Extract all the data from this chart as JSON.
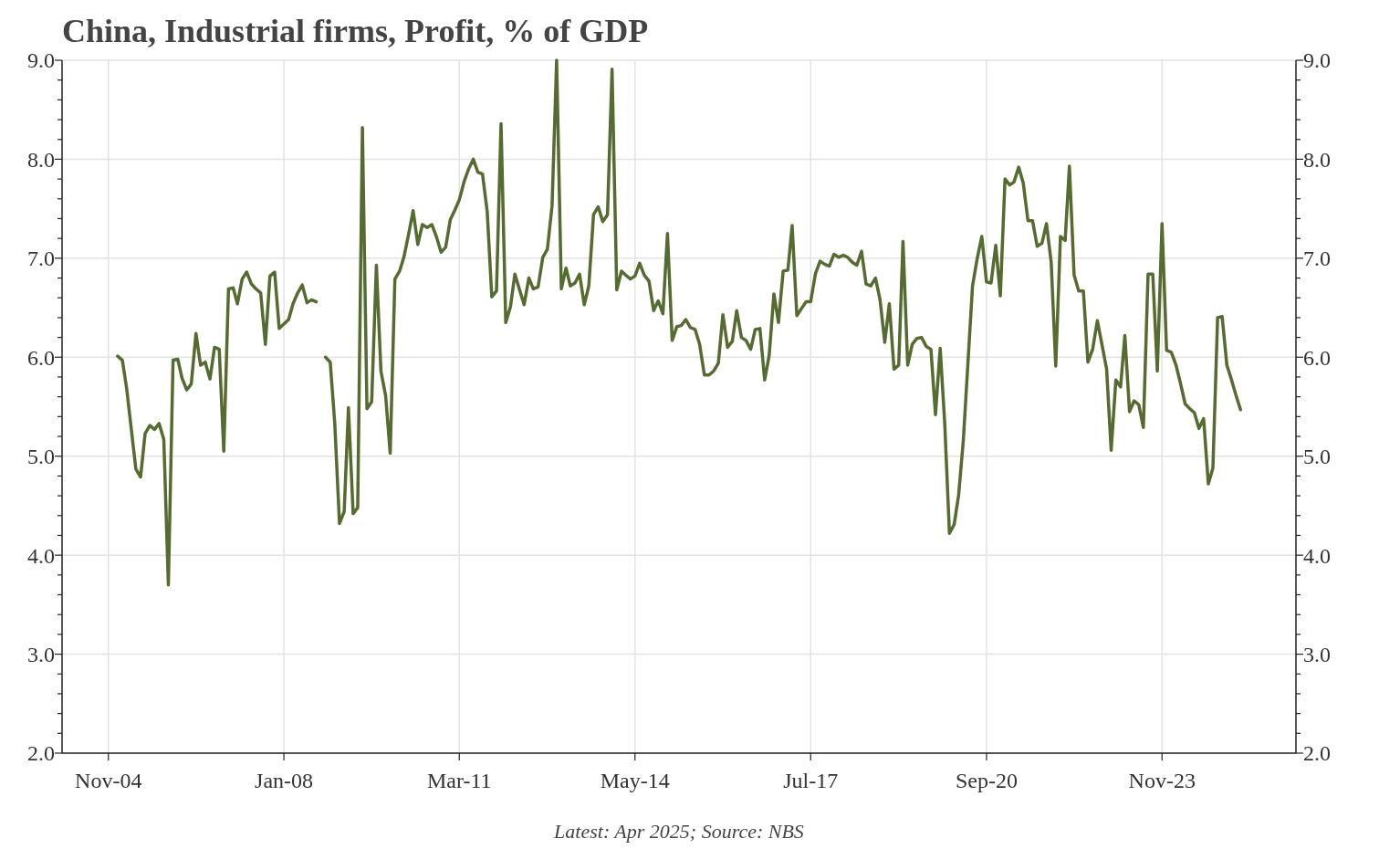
{
  "chart_data": {
    "type": "line",
    "title": "China, Industrial firms, Profit, % of GDP",
    "annotations": [
      "Latest: Apr 2025; Source: NBS"
    ],
    "xlim": [
      "2004-01",
      "2026-04"
    ],
    "xticks": [
      {
        "value": "2004-11",
        "label": "Nov-04"
      },
      {
        "value": "2008-01",
        "label": "Jan-08"
      },
      {
        "value": "2011-03",
        "label": "Mar-11"
      },
      {
        "value": "2014-05",
        "label": "May-14"
      },
      {
        "value": "2017-07",
        "label": "Jul-17"
      },
      {
        "value": "2020-09",
        "label": "Sep-20"
      },
      {
        "value": "2023-11",
        "label": "Nov-23"
      }
    ],
    "ylim": [
      2,
      9
    ],
    "yticks": [
      {
        "value": 2,
        "label": "2.0"
      },
      {
        "value": 2.2,
        "label": null
      },
      {
        "value": 2.4,
        "label": null
      },
      {
        "value": 2.6,
        "label": null
      },
      {
        "value": 2.8,
        "label": null
      },
      {
        "value": 3,
        "label": "3.0"
      },
      {
        "value": 3.2,
        "label": null
      },
      {
        "value": 3.4,
        "label": null
      },
      {
        "value": 3.6,
        "label": null
      },
      {
        "value": 3.8,
        "label": null
      },
      {
        "value": 4,
        "label": "4.0"
      },
      {
        "value": 4.2,
        "label": null
      },
      {
        "value": 4.4,
        "label": null
      },
      {
        "value": 4.6,
        "label": null
      },
      {
        "value": 4.8,
        "label": null
      },
      {
        "value": 5,
        "label": "5.0"
      },
      {
        "value": 5.2,
        "label": null
      },
      {
        "value": 5.4,
        "label": null
      },
      {
        "value": 5.6,
        "label": null
      },
      {
        "value": 5.8,
        "label": null
      },
      {
        "value": 6,
        "label": "6.0"
      },
      {
        "value": 6.2,
        "label": null
      },
      {
        "value": 6.4,
        "label": null
      },
      {
        "value": 6.6,
        "label": null
      },
      {
        "value": 6.8,
        "label": null
      },
      {
        "value": 7,
        "label": "7.0"
      },
      {
        "value": 7.2,
        "label": null
      },
      {
        "value": 7.4,
        "label": null
      },
      {
        "value": 7.6,
        "label": null
      },
      {
        "value": 7.8,
        "label": null
      },
      {
        "value": 8,
        "label": "8.0"
      },
      {
        "value": 8.2,
        "label": null
      },
      {
        "value": 8.4,
        "label": null
      },
      {
        "value": 8.6,
        "label": null
      },
      {
        "value": 8.8,
        "label": null
      },
      {
        "value": 9,
        "label": "9.0"
      }
    ],
    "y2lim": [
      2,
      9
    ],
    "y2ticks": [
      {
        "value": 2,
        "label": "2.0"
      },
      {
        "value": 2.2,
        "label": null
      },
      {
        "value": 2.4,
        "label": null
      },
      {
        "value": 2.6,
        "label": null
      },
      {
        "value": 2.8,
        "label": null
      },
      {
        "value": 3,
        "label": "3.0"
      },
      {
        "value": 3.2,
        "label": null
      },
      {
        "value": 3.4,
        "label": null
      },
      {
        "value": 3.6,
        "label": null
      },
      {
        "value": 3.8,
        "label": null
      },
      {
        "value": 4,
        "label": "4.0"
      },
      {
        "value": 4.2,
        "label": null
      },
      {
        "value": 4.4,
        "label": null
      },
      {
        "value": 4.6,
        "label": null
      },
      {
        "value": 4.8,
        "label": null
      },
      {
        "value": 5,
        "label": "5.0"
      },
      {
        "value": 5.2,
        "label": null
      },
      {
        "value": 5.4,
        "label": null
      },
      {
        "value": 5.6,
        "label": null
      },
      {
        "value": 5.8,
        "label": null
      },
      {
        "value": 6,
        "label": "6.0"
      },
      {
        "value": 6.2,
        "label": null
      },
      {
        "value": 6.4,
        "label": null
      },
      {
        "value": 6.6,
        "label": null
      },
      {
        "value": 6.8,
        "label": null
      },
      {
        "value": 7,
        "label": "7.0"
      },
      {
        "value": 7.2,
        "label": null
      },
      {
        "value": 7.4,
        "label": null
      },
      {
        "value": 7.6,
        "label": null
      },
      {
        "value": 7.8,
        "label": null
      },
      {
        "value": 8,
        "label": "8.0"
      },
      {
        "value": 8.2,
        "label": null
      },
      {
        "value": 8.4,
        "label": null
      },
      {
        "value": 8.6,
        "label": null
      },
      {
        "value": 8.8,
        "label": null
      },
      {
        "value": 9,
        "label": "9.0"
      }
    ],
    "grid": true,
    "x": [
      "2005-01",
      "2005-02",
      "2005-03",
      "2005-05",
      "2005-06",
      "2005-07",
      "2005-08",
      "2005-09",
      "2005-10",
      "2005-11",
      "2005-12",
      "2006-01",
      "2006-02",
      "2006-03",
      "2006-04",
      "2006-05",
      "2006-06",
      "2006-07",
      "2006-08",
      "2006-09",
      "2006-10",
      "2006-11",
      "2006-12",
      "2007-01",
      "2007-02",
      "2007-03",
      "2007-04",
      "2007-05",
      "2007-06",
      "2007-07",
      "2007-08",
      "2007-09",
      "2007-10",
      "2007-11",
      "2007-12",
      "2008-02",
      "2008-03",
      "2008-04",
      "2008-05",
      "2008-06",
      "2008-07",
      "2008-08",
      "2008-09",
      "2008-10",
      "2008-11",
      "2008-12",
      "2009-01",
      "2009-02",
      "2009-03",
      "2009-04",
      "2009-05",
      "2009-06",
      "2009-07",
      "2009-08",
      "2009-09",
      "2009-10",
      "2009-11",
      "2009-12",
      "2010-01",
      "2010-02",
      "2010-03",
      "2010-04",
      "2010-05",
      "2010-06",
      "2010-07",
      "2010-08",
      "2010-09",
      "2010-10",
      "2010-11",
      "2010-12",
      "2011-01",
      "2011-02",
      "2011-03",
      "2011-04",
      "2011-05",
      "2011-06",
      "2011-07",
      "2011-08",
      "2011-09",
      "2011-10",
      "2011-11",
      "2011-12",
      "2012-01",
      "2012-02",
      "2012-03",
      "2012-04",
      "2012-05",
      "2012-06",
      "2012-07",
      "2012-08",
      "2012-09",
      "2012-10",
      "2012-11",
      "2012-12",
      "2013-01",
      "2013-02",
      "2013-03",
      "2013-04",
      "2013-05",
      "2013-06",
      "2013-07",
      "2013-08",
      "2013-09",
      "2013-10",
      "2013-11",
      "2013-12",
      "2014-01",
      "2014-02",
      "2014-03",
      "2014-04",
      "2014-05",
      "2014-06",
      "2014-07",
      "2014-08",
      "2014-09",
      "2014-10",
      "2014-11",
      "2014-12",
      "2015-01",
      "2015-02",
      "2015-03",
      "2015-04",
      "2015-05",
      "2015-06",
      "2015-07",
      "2015-08",
      "2015-09",
      "2015-10",
      "2015-11",
      "2015-12",
      "2016-01",
      "2016-02",
      "2016-03",
      "2016-04",
      "2016-05",
      "2016-06",
      "2016-07",
      "2016-08",
      "2016-09",
      "2016-10",
      "2016-11",
      "2016-12",
      "2017-01",
      "2017-02",
      "2017-03",
      "2017-04",
      "2017-05",
      "2017-06",
      "2017-07",
      "2017-08",
      "2017-09",
      "2017-10",
      "2017-11",
      "2017-12",
      "2018-01",
      "2018-02",
      "2018-03",
      "2018-04",
      "2018-05",
      "2018-06",
      "2018-07",
      "2018-08",
      "2018-09",
      "2018-10",
      "2018-11",
      "2018-12",
      "2019-01",
      "2019-02",
      "2019-03",
      "2019-04",
      "2019-05",
      "2019-06",
      "2019-07",
      "2019-08",
      "2019-09",
      "2019-10",
      "2019-11",
      "2019-12",
      "2020-01",
      "2020-02",
      "2020-03",
      "2020-04",
      "2020-05",
      "2020-06",
      "2020-07",
      "2020-08",
      "2020-09",
      "2020-10",
      "2020-11",
      "2020-12",
      "2021-01",
      "2021-02",
      "2021-03",
      "2021-04",
      "2021-05",
      "2021-06",
      "2021-07",
      "2021-08",
      "2021-09",
      "2021-10",
      "2021-11",
      "2021-12",
      "2022-01",
      "2022-02",
      "2022-03",
      "2022-04",
      "2022-05",
      "2022-06",
      "2022-07",
      "2022-08",
      "2022-09",
      "2022-10",
      "2022-11",
      "2022-12",
      "2023-01",
      "2023-02",
      "2023-03",
      "2023-04",
      "2023-05",
      "2023-06",
      "2023-07",
      "2023-08",
      "2023-09",
      "2023-10",
      "2023-11",
      "2023-12",
      "2024-01",
      "2024-02",
      "2024-03",
      "2024-04",
      "2024-05",
      "2024-06",
      "2024-07",
      "2024-08",
      "2024-09",
      "2024-10",
      "2024-11",
      "2024-12",
      "2025-01",
      "2025-02",
      "2025-03",
      "2025-04"
    ],
    "series": [
      {
        "color": "#556b2f",
        "values": [
          6.01,
          5.97,
          5.69,
          4.87,
          4.79,
          5.23,
          5.31,
          5.27,
          5.33,
          5.17,
          3.7,
          5.97,
          5.98,
          5.79,
          5.67,
          5.73,
          6.24,
          5.92,
          5.95,
          5.78,
          6.1,
          6.08,
          5.05,
          6.69,
          6.7,
          6.54,
          6.79,
          6.86,
          6.74,
          6.69,
          6.65,
          6.13,
          6.82,
          6.86,
          6.29,
          6.38,
          6.54,
          6.65,
          6.73,
          6.55,
          6.58,
          6.56,
          null,
          6.0,
          5.95,
          5.33,
          4.32,
          4.44,
          5.49,
          4.42,
          4.48,
          8.32,
          5.48,
          5.55,
          6.93,
          5.86,
          5.61,
          5.03,
          6.79,
          6.87,
          7.01,
          7.24,
          7.48,
          7.14,
          7.34,
          7.31,
          7.34,
          7.22,
          7.06,
          7.11,
          7.39,
          7.49,
          7.59,
          7.77,
          7.9,
          8.0,
          7.87,
          7.85,
          7.47,
          6.61,
          6.67,
          8.36,
          6.35,
          6.51,
          6.84,
          6.68,
          6.53,
          6.8,
          6.69,
          6.71,
          7.01,
          7.09,
          7.53,
          9.0,
          6.69,
          6.9,
          6.72,
          6.75,
          6.84,
          6.53,
          6.72,
          7.44,
          7.52,
          7.37,
          7.44,
          8.91,
          6.68,
          6.87,
          6.83,
          6.79,
          6.82,
          6.95,
          6.83,
          6.77,
          6.47,
          6.57,
          6.44,
          7.25,
          6.17,
          6.31,
          6.32,
          6.38,
          6.3,
          6.28,
          6.13,
          5.82,
          5.82,
          5.86,
          5.94,
          6.43,
          6.1,
          6.16,
          6.47,
          6.2,
          6.17,
          6.08,
          6.28,
          6.29,
          5.77,
          6.02,
          6.64,
          6.35,
          6.87,
          6.88,
          7.33,
          6.42,
          6.49,
          6.56,
          6.56,
          6.84,
          6.97,
          6.94,
          6.92,
          7.04,
          7.01,
          7.03,
          7.01,
          6.96,
          6.93,
          7.07,
          6.74,
          6.72,
          6.8,
          6.58,
          6.15,
          6.54,
          5.88,
          5.92,
          7.17,
          5.92,
          6.13,
          6.19,
          6.2,
          6.11,
          6.08,
          5.42,
          6.09,
          5.33,
          4.22,
          4.31,
          4.6,
          5.15,
          5.92,
          6.72,
          6.99,
          7.22,
          6.76,
          6.75,
          7.13,
          6.62,
          7.8,
          7.74,
          7.77,
          7.92,
          7.76,
          7.38,
          7.38,
          7.12,
          7.15,
          7.35,
          6.96,
          5.91,
          7.22,
          7.18,
          7.93,
          6.83,
          6.67,
          6.67,
          5.95,
          6.08,
          6.37,
          6.13,
          5.88,
          5.06,
          5.77,
          5.7,
          6.22,
          5.45,
          5.56,
          5.52,
          5.29,
          6.84,
          6.84,
          5.86,
          7.35,
          6.07,
          6.05,
          5.92,
          5.74,
          5.53,
          5.48,
          5.44,
          5.28,
          5.38,
          4.72,
          4.88,
          6.4,
          6.41,
          5.92,
          5.77,
          5.62,
          5.47
        ]
      }
    ]
  }
}
